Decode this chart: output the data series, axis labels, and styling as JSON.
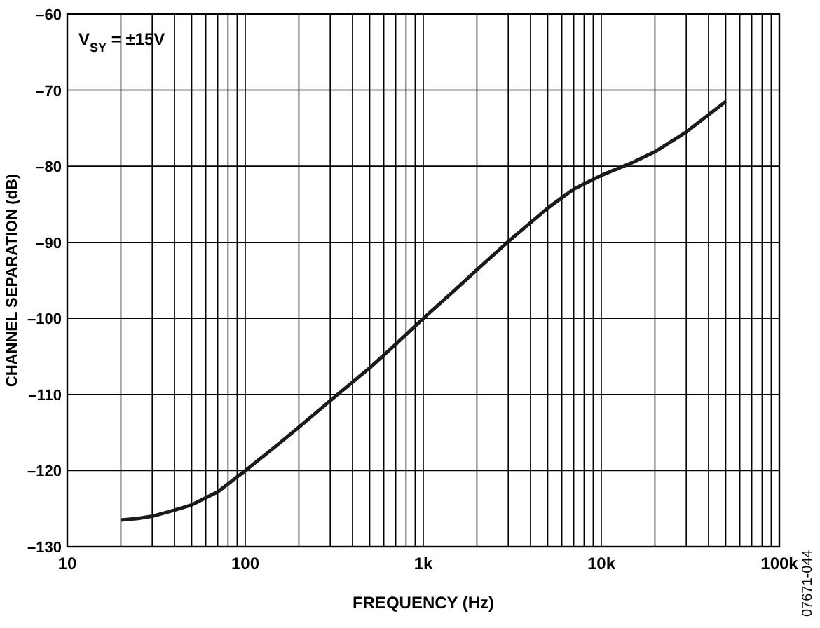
{
  "chart_data": {
    "type": "line",
    "xlabel": "FREQUENCY (Hz)",
    "ylabel": "CHANNEL SEPARATION (dB)",
    "log": "x",
    "grid": true,
    "marker": "none",
    "line_style": "solid",
    "xlim": [
      10,
      100000
    ],
    "ylim": [
      -130,
      -60
    ],
    "xticks": [
      {
        "value": 10,
        "label": "10"
      },
      {
        "value": 20,
        "label": null
      },
      {
        "value": 30,
        "label": null
      },
      {
        "value": 40,
        "label": null
      },
      {
        "value": 50,
        "label": null
      },
      {
        "value": 60,
        "label": null
      },
      {
        "value": 70,
        "label": null
      },
      {
        "value": 80,
        "label": null
      },
      {
        "value": 90,
        "label": null
      },
      {
        "value": 100,
        "label": "100"
      },
      {
        "value": 200,
        "label": null
      },
      {
        "value": 300,
        "label": null
      },
      {
        "value": 400,
        "label": null
      },
      {
        "value": 500,
        "label": null
      },
      {
        "value": 600,
        "label": null
      },
      {
        "value": 700,
        "label": null
      },
      {
        "value": 800,
        "label": null
      },
      {
        "value": 900,
        "label": null
      },
      {
        "value": 1000,
        "label": "1k"
      },
      {
        "value": 2000,
        "label": null
      },
      {
        "value": 3000,
        "label": null
      },
      {
        "value": 4000,
        "label": null
      },
      {
        "value": 5000,
        "label": null
      },
      {
        "value": 6000,
        "label": null
      },
      {
        "value": 7000,
        "label": null
      },
      {
        "value": 8000,
        "label": null
      },
      {
        "value": 9000,
        "label": null
      },
      {
        "value": 10000,
        "label": "10k"
      },
      {
        "value": 20000,
        "label": null
      },
      {
        "value": 30000,
        "label": null
      },
      {
        "value": 40000,
        "label": null
      },
      {
        "value": 50000,
        "label": null
      },
      {
        "value": 60000,
        "label": null
      },
      {
        "value": 70000,
        "label": null
      },
      {
        "value": 80000,
        "label": null
      },
      {
        "value": 90000,
        "label": null
      },
      {
        "value": 100000,
        "label": "100k"
      }
    ],
    "yticks": [
      {
        "value": -130,
        "label": "–130"
      },
      {
        "value": -120,
        "label": "–120"
      },
      {
        "value": -110,
        "label": "–110"
      },
      {
        "value": -100,
        "label": "–100"
      },
      {
        "value": -90,
        "label": "–90"
      },
      {
        "value": -80,
        "label": "–80"
      },
      {
        "value": -70,
        "label": "–70"
      },
      {
        "value": -60,
        "label": "–60"
      }
    ],
    "x": [
      20,
      25,
      30,
      40,
      50,
      70,
      100,
      150,
      200,
      300,
      500,
      700,
      1000,
      1500,
      2000,
      3000,
      5000,
      7000,
      10000,
      15000,
      20000,
      30000,
      50000
    ],
    "series": [
      {
        "color": "#1a1a1a",
        "values": [
          -126.5,
          -126.3,
          -126,
          -125.2,
          -124.5,
          -122.8,
          -120,
          -116.7,
          -114.3,
          -110.8,
          -106.5,
          -103.4,
          -100,
          -96.3,
          -93.6,
          -89.9,
          -85.5,
          -83,
          -81.2,
          -79.5,
          -78.1,
          -75.5,
          -71.5
        ]
      }
    ],
    "annotations": [
      "V$_{SY}$ = ±15V",
      "07671-044"
    ]
  }
}
